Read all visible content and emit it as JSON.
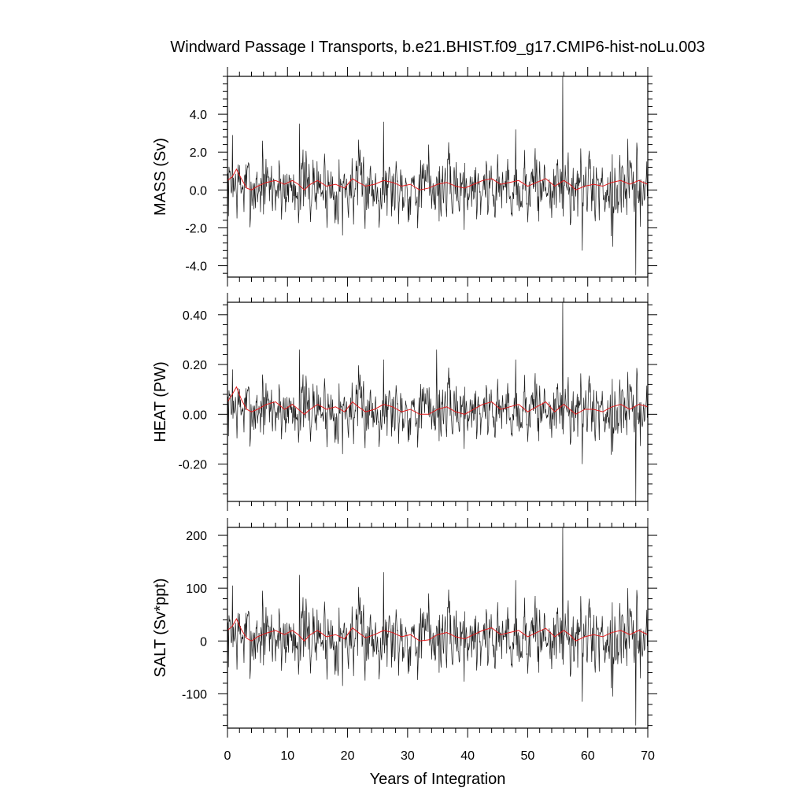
{
  "title": "Windward Passage I Transports, b.e21.BHIST.f09_g17.CMIP6-hist-noLu.003",
  "colors": {
    "raw": "#1a1a1a",
    "smooth": "#e41a1c"
  },
  "chart_data": [
    {
      "type": "line",
      "ylabel": "MASS (Sv)",
      "xlabel": "",
      "xlim": [
        0,
        70
      ],
      "ylim": [
        -4.6,
        6.0
      ],
      "xticks": [
        0,
        10,
        20,
        30,
        40,
        50,
        60,
        70
      ],
      "yticks": [
        -4.0,
        -2.0,
        0.0,
        2.0,
        4.0
      ],
      "ytick_labels": [
        "-4.0",
        "-2.0",
        "0.0",
        "2.0",
        "4.0"
      ],
      "ytick_minor_step": 0.4,
      "series": [
        {
          "kind": "monthly",
          "noise_amplitude": 0.85,
          "offset": 0.15,
          "seed": 7,
          "spikes": [
            {
              "x": 0.8,
              "y": 2.9
            },
            {
              "x": 5.8,
              "y": 2.6
            },
            {
              "x": 12.0,
              "y": 3.5
            },
            {
              "x": 19.2,
              "y": -2.4
            },
            {
              "x": 26.0,
              "y": 3.6
            },
            {
              "x": 33.5,
              "y": 2.4
            },
            {
              "x": 48.0,
              "y": 3.2
            },
            {
              "x": 55.8,
              "y": 6.0
            },
            {
              "x": 55.9,
              "y": -1.4
            },
            {
              "x": 59.1,
              "y": -3.2
            },
            {
              "x": 64.2,
              "y": -3.0
            },
            {
              "x": 66.7,
              "y": 2.7
            },
            {
              "x": 68.0,
              "y": -4.5
            }
          ]
        },
        {
          "kind": "smoothed",
          "points": [
            [
              0,
              0.5
            ],
            [
              0.8,
              0.7
            ],
            [
              1.5,
              1.1
            ],
            [
              2.3,
              0.6
            ],
            [
              3.2,
              0.1
            ],
            [
              4.0,
              0.0
            ],
            [
              5.0,
              0.2
            ],
            [
              6.5,
              0.4
            ],
            [
              8.0,
              0.5
            ],
            [
              9.5,
              0.3
            ],
            [
              10.8,
              0.5
            ],
            [
              11.8,
              0.3
            ],
            [
              12.8,
              0.0
            ],
            [
              13.8,
              0.3
            ],
            [
              15.0,
              0.5
            ],
            [
              16.5,
              0.2
            ],
            [
              18.0,
              0.3
            ],
            [
              19.5,
              0.1
            ],
            [
              20.8,
              0.6
            ],
            [
              21.8,
              0.4
            ],
            [
              23.0,
              0.2
            ],
            [
              24.5,
              0.3
            ],
            [
              26.0,
              0.5
            ],
            [
              27.5,
              0.4
            ],
            [
              29.0,
              0.2
            ],
            [
              30.5,
              0.3
            ],
            [
              32.0,
              0.0
            ],
            [
              33.5,
              0.1
            ],
            [
              35.0,
              0.3
            ],
            [
              36.5,
              0.4
            ],
            [
              38.0,
              0.2
            ],
            [
              39.5,
              0.1
            ],
            [
              41.0,
              0.3
            ],
            [
              42.5,
              0.5
            ],
            [
              44.0,
              0.6
            ],
            [
              45.5,
              0.3
            ],
            [
              47.0,
              0.4
            ],
            [
              48.5,
              0.5
            ],
            [
              50.0,
              0.2
            ],
            [
              51.5,
              0.4
            ],
            [
              53.0,
              0.6
            ],
            [
              54.5,
              0.2
            ],
            [
              56.0,
              0.5
            ],
            [
              57.0,
              0.3
            ],
            [
              58.0,
              0.0
            ],
            [
              59.5,
              0.2
            ],
            [
              61.0,
              0.3
            ],
            [
              62.5,
              0.2
            ],
            [
              64.0,
              0.4
            ],
            [
              65.5,
              0.5
            ],
            [
              67.0,
              0.3
            ],
            [
              68.5,
              0.5
            ],
            [
              70.0,
              0.3
            ]
          ]
        }
      ]
    },
    {
      "type": "line",
      "ylabel": "HEAT (PW)",
      "xlabel": "",
      "xlim": [
        0,
        70
      ],
      "ylim": [
        -0.35,
        0.45
      ],
      "xticks": [
        0,
        10,
        20,
        30,
        40,
        50,
        60,
        70
      ],
      "yticks": [
        -0.2,
        0.0,
        0.2,
        0.4
      ],
      "ytick_labels": [
        "-0.20",
        "0.00",
        "0.20",
        "0.40"
      ],
      "ytick_minor_step": 0.04,
      "series": [
        {
          "kind": "monthly",
          "noise_amplitude": 0.06,
          "offset": 0.02,
          "seed": 7,
          "spikes": [
            {
              "x": 0.8,
              "y": 0.18
            },
            {
              "x": 5.8,
              "y": 0.16
            },
            {
              "x": 12.0,
              "y": 0.26
            },
            {
              "x": 19.2,
              "y": -0.16
            },
            {
              "x": 26.0,
              "y": 0.22
            },
            {
              "x": 34.8,
              "y": 0.26
            },
            {
              "x": 48.0,
              "y": 0.22
            },
            {
              "x": 55.8,
              "y": 0.45
            },
            {
              "x": 55.9,
              "y": -0.08
            },
            {
              "x": 59.1,
              "y": -0.2
            },
            {
              "x": 64.2,
              "y": -0.15
            },
            {
              "x": 66.7,
              "y": 0.17
            },
            {
              "x": 68.0,
              "y": -0.35
            }
          ]
        },
        {
          "kind": "smoothed",
          "points": [
            [
              0,
              0.05
            ],
            [
              0.8,
              0.08
            ],
            [
              1.5,
              0.11
            ],
            [
              2.3,
              0.06
            ],
            [
              3.2,
              0.02
            ],
            [
              4.0,
              0.01
            ],
            [
              5.0,
              0.02
            ],
            [
              6.5,
              0.04
            ],
            [
              8.0,
              0.05
            ],
            [
              9.5,
              0.02
            ],
            [
              10.8,
              0.04
            ],
            [
              11.8,
              0.02
            ],
            [
              12.8,
              0.0
            ],
            [
              13.8,
              0.02
            ],
            [
              15.0,
              0.04
            ],
            [
              16.5,
              0.02
            ],
            [
              18.0,
              0.03
            ],
            [
              19.5,
              0.01
            ],
            [
              20.8,
              0.05
            ],
            [
              21.8,
              0.03
            ],
            [
              23.0,
              0.01
            ],
            [
              24.5,
              0.02
            ],
            [
              26.0,
              0.04
            ],
            [
              27.5,
              0.03
            ],
            [
              29.0,
              0.01
            ],
            [
              30.5,
              0.02
            ],
            [
              32.0,
              0.0
            ],
            [
              33.5,
              0.0
            ],
            [
              35.0,
              0.02
            ],
            [
              36.5,
              0.03
            ],
            [
              38.0,
              0.01
            ],
            [
              39.5,
              0.0
            ],
            [
              41.0,
              0.02
            ],
            [
              42.5,
              0.04
            ],
            [
              44.0,
              0.05
            ],
            [
              45.5,
              0.02
            ],
            [
              47.0,
              0.03
            ],
            [
              48.5,
              0.04
            ],
            [
              50.0,
              0.01
            ],
            [
              51.5,
              0.03
            ],
            [
              53.0,
              0.05
            ],
            [
              54.5,
              0.01
            ],
            [
              56.0,
              0.04
            ],
            [
              57.0,
              0.02
            ],
            [
              58.0,
              0.0
            ],
            [
              59.5,
              0.02
            ],
            [
              61.0,
              0.02
            ],
            [
              62.5,
              0.01
            ],
            [
              64.0,
              0.03
            ],
            [
              65.5,
              0.04
            ],
            [
              67.0,
              0.02
            ],
            [
              68.5,
              0.04
            ],
            [
              70.0,
              0.03
            ]
          ]
        }
      ]
    },
    {
      "type": "line",
      "ylabel": "SALT (Sv*ppt)",
      "xlabel": "Years of Integration",
      "xlim": [
        0,
        70
      ],
      "ylim": [
        -165,
        215
      ],
      "xticks": [
        0,
        10,
        20,
        30,
        40,
        50,
        60,
        70
      ],
      "xtick_labels": [
        "0",
        "10",
        "20",
        "30",
        "40",
        "50",
        "60",
        "70"
      ],
      "yticks": [
        -100,
        0,
        100,
        200
      ],
      "ytick_labels": [
        "-100",
        "0",
        "100",
        "200"
      ],
      "ytick_minor_step": 20,
      "series": [
        {
          "kind": "monthly",
          "noise_amplitude": 32,
          "offset": 8,
          "seed": 7,
          "spikes": [
            {
              "x": 0.8,
              "y": 105
            },
            {
              "x": 5.8,
              "y": 95
            },
            {
              "x": 12.0,
              "y": 125
            },
            {
              "x": 19.2,
              "y": -85
            },
            {
              "x": 26.0,
              "y": 130
            },
            {
              "x": 33.5,
              "y": 90
            },
            {
              "x": 48.0,
              "y": 115
            },
            {
              "x": 55.8,
              "y": 215
            },
            {
              "x": 55.9,
              "y": -45
            },
            {
              "x": 59.1,
              "y": -115
            },
            {
              "x": 64.2,
              "y": -105
            },
            {
              "x": 66.7,
              "y": 100
            },
            {
              "x": 68.0,
              "y": -160
            }
          ]
        },
        {
          "kind": "smoothed",
          "points": [
            [
              0,
              20
            ],
            [
              0.8,
              28
            ],
            [
              1.5,
              42
            ],
            [
              2.3,
              22
            ],
            [
              3.2,
              5
            ],
            [
              4.0,
              0
            ],
            [
              5.0,
              8
            ],
            [
              6.5,
              15
            ],
            [
              8.0,
              20
            ],
            [
              9.5,
              12
            ],
            [
              10.8,
              20
            ],
            [
              11.8,
              12
            ],
            [
              12.8,
              0
            ],
            [
              13.8,
              12
            ],
            [
              15.0,
              20
            ],
            [
              16.5,
              8
            ],
            [
              18.0,
              12
            ],
            [
              19.5,
              4
            ],
            [
              20.8,
              25
            ],
            [
              21.8,
              16
            ],
            [
              23.0,
              6
            ],
            [
              24.5,
              12
            ],
            [
              26.0,
              20
            ],
            [
              27.5,
              16
            ],
            [
              29.0,
              8
            ],
            [
              30.5,
              12
            ],
            [
              32.0,
              0
            ],
            [
              33.5,
              2
            ],
            [
              35.0,
              12
            ],
            [
              36.5,
              16
            ],
            [
              38.0,
              8
            ],
            [
              39.5,
              4
            ],
            [
              41.0,
              12
            ],
            [
              42.5,
              20
            ],
            [
              44.0,
              25
            ],
            [
              45.5,
              12
            ],
            [
              47.0,
              16
            ],
            [
              48.5,
              20
            ],
            [
              50.0,
              8
            ],
            [
              51.5,
              16
            ],
            [
              53.0,
              24
            ],
            [
              54.5,
              8
            ],
            [
              56.0,
              20
            ],
            [
              57.0,
              12
            ],
            [
              58.0,
              0
            ],
            [
              59.5,
              8
            ],
            [
              61.0,
              12
            ],
            [
              62.5,
              8
            ],
            [
              64.0,
              16
            ],
            [
              65.5,
              20
            ],
            [
              67.0,
              12
            ],
            [
              68.5,
              20
            ],
            [
              70.0,
              12
            ]
          ]
        }
      ]
    }
  ]
}
